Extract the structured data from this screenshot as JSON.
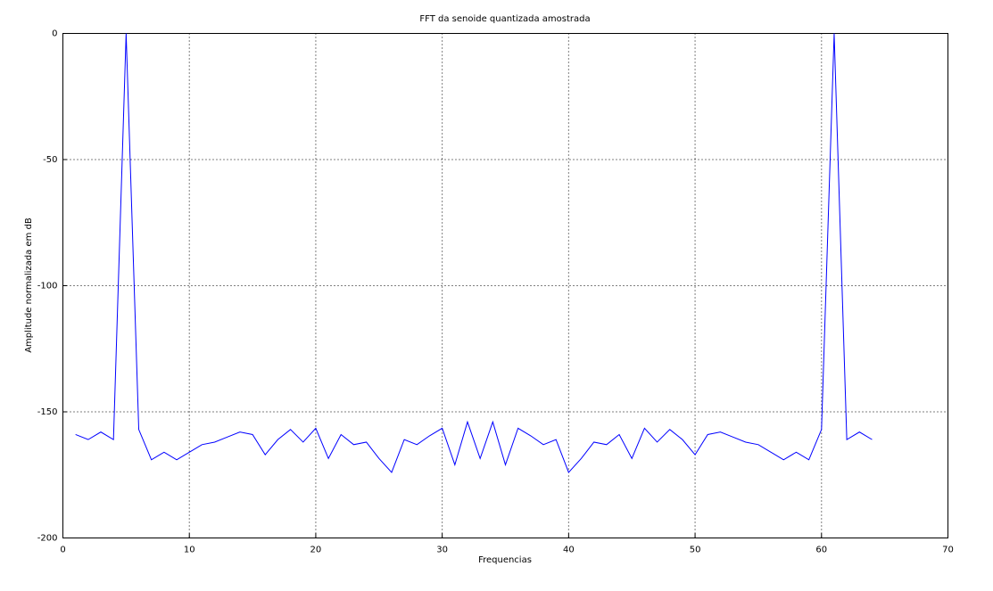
{
  "chart_data": {
    "type": "line",
    "title": "FFT da senoide quantizada amostrada",
    "x_label": "Frequencias",
    "y_label": "Amplitude normalizada em dB",
    "x": [
      1,
      2,
      3,
      4,
      5,
      6,
      7,
      8,
      9,
      10,
      11,
      12,
      13,
      14,
      15,
      16,
      17,
      18,
      19,
      20,
      21,
      22,
      23,
      24,
      25,
      26,
      27,
      28,
      29,
      30,
      31,
      32,
      33,
      34,
      35,
      36,
      37,
      38,
      39,
      40,
      41,
      42,
      43,
      44,
      45,
      46,
      47,
      48,
      49,
      50,
      51,
      52,
      53,
      54,
      55,
      56,
      57,
      58,
      59,
      60,
      61,
      62,
      63,
      64
    ],
    "series": [
      {
        "color": "#0000ff",
        "values": [
          -159,
          -161,
          -158,
          -161,
          0,
          -157,
          -169,
          -166,
          -169,
          -166,
          -163,
          -162,
          -160,
          -158,
          -159,
          -167,
          -161,
          -157,
          -162,
          -156.5,
          -168.5,
          -159,
          -163,
          -162,
          -168.5,
          -174,
          -161,
          -163,
          -159.5,
          -156.5,
          -171,
          -154,
          -168.5,
          -154,
          -171,
          -156.5,
          -159.5,
          -163,
          -161,
          -174,
          -168.5,
          -162,
          -163,
          -159,
          -168.5,
          -156.5,
          -162,
          -157,
          -161,
          -167,
          -159,
          -158,
          -160,
          -162,
          -163,
          -166,
          -169,
          -166,
          -169,
          -157,
          0,
          -161,
          -158,
          -161
        ]
      }
    ],
    "xlim": [
      0,
      70
    ],
    "xticks": [
      0,
      10,
      20,
      30,
      40,
      50,
      60,
      70
    ],
    "ylim": [
      -200,
      0
    ],
    "yticks": [
      -200,
      -150,
      -100,
      -50,
      0
    ],
    "grid": true
  }
}
